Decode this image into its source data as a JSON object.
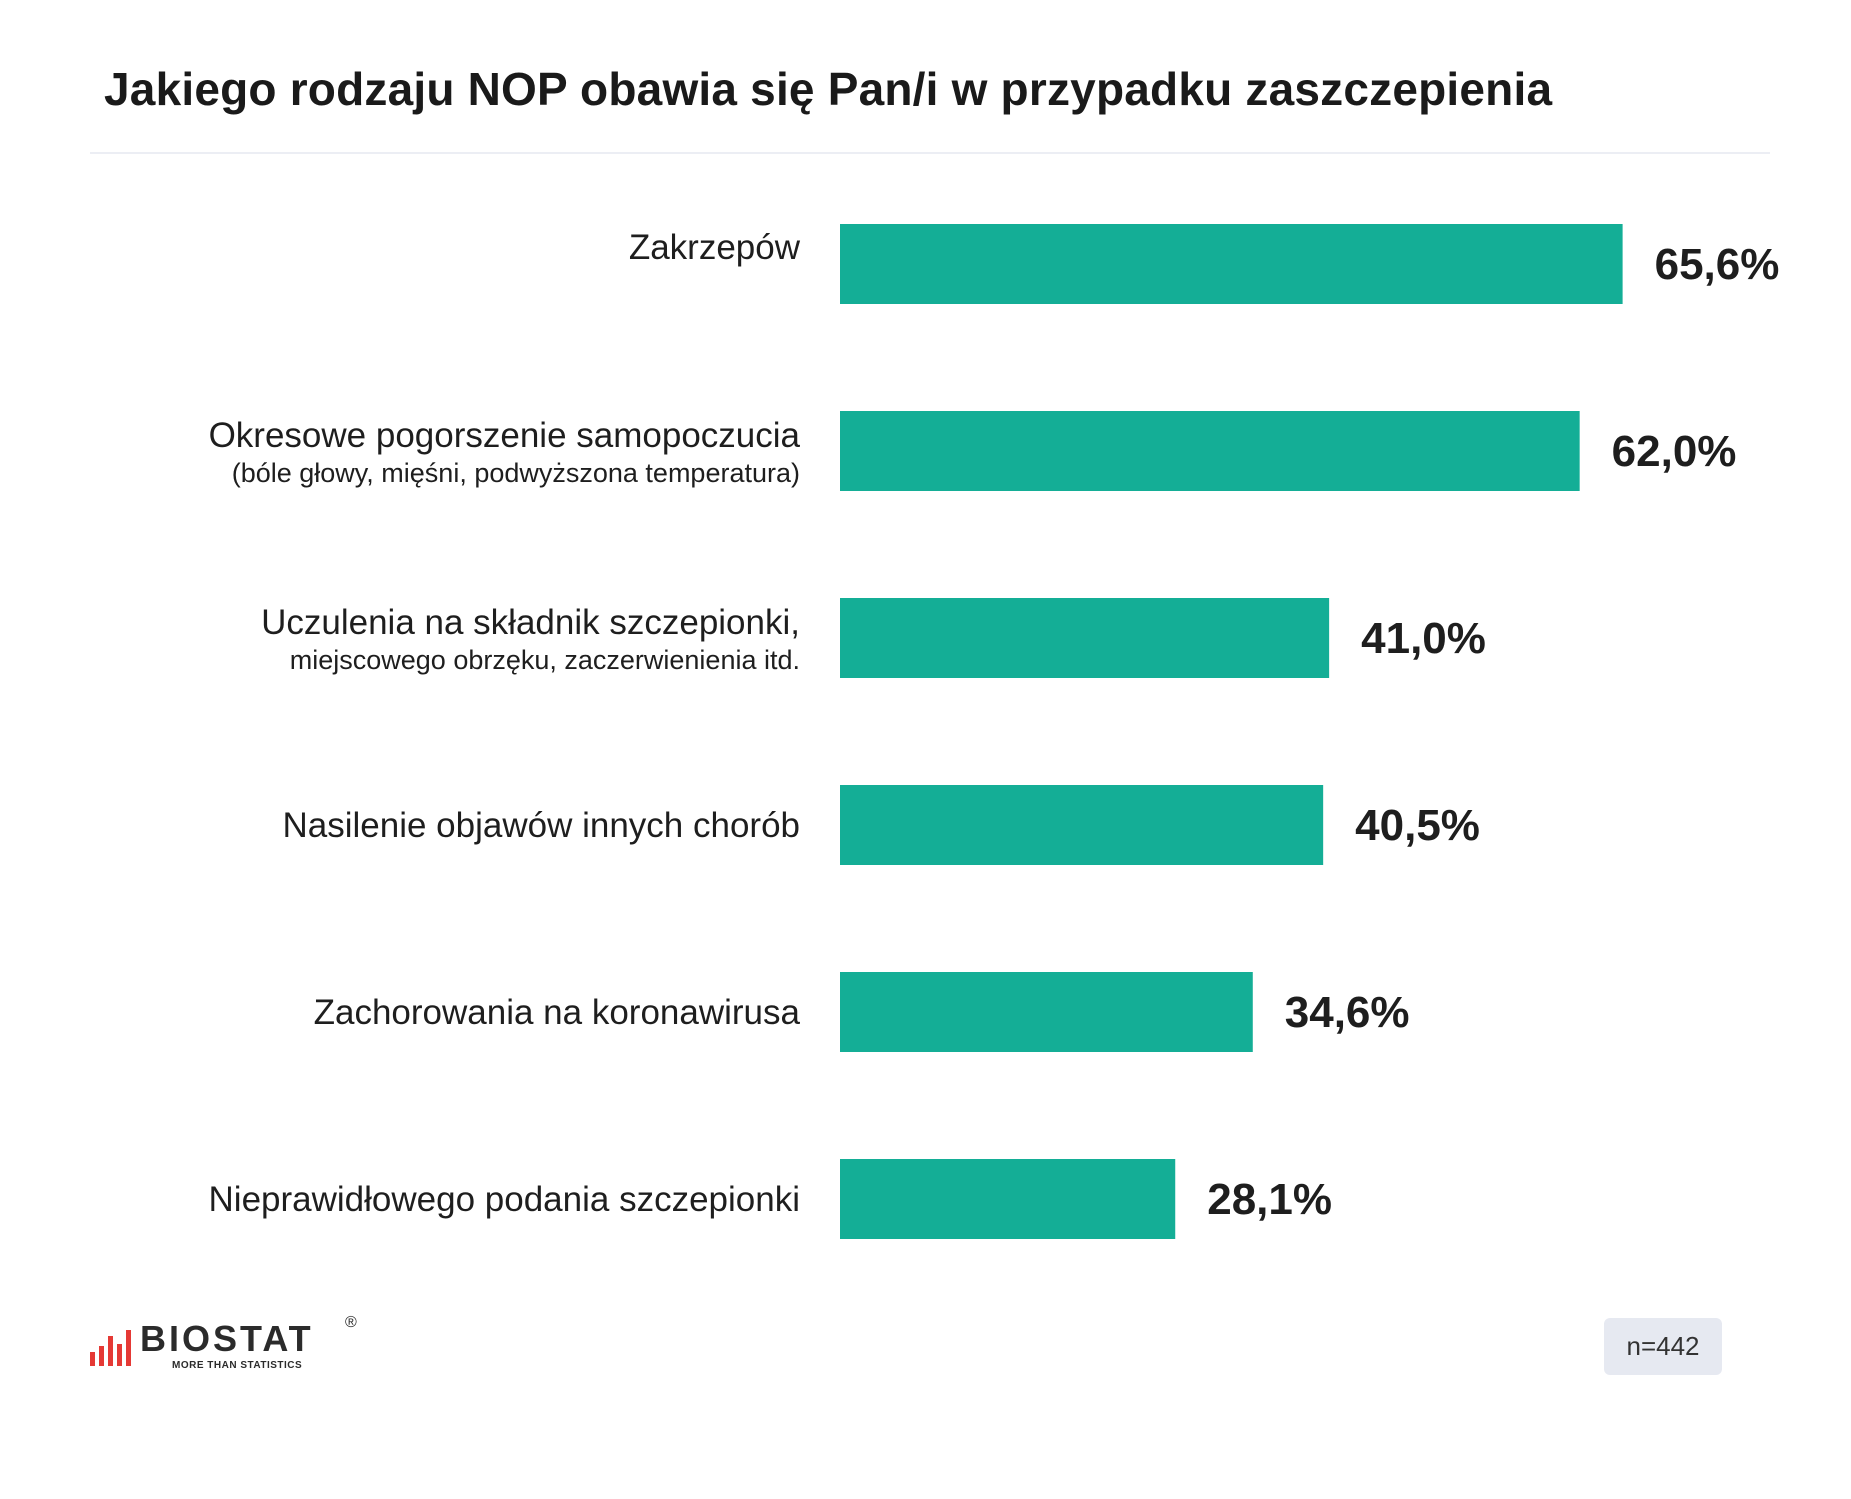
{
  "chart_data": {
    "type": "bar",
    "orientation": "horizontal",
    "title": "Jakiego rodzaju NOP obawia się Pan/i w przypadku zaszczepienia",
    "categories": [
      {
        "label": "Zakrzepów",
        "sublabel": ""
      },
      {
        "label": "Okresowe pogorszenie samopoczucia",
        "sublabel": "(bóle głowy, mięśni, podwyższona temperatura)"
      },
      {
        "label": "Uczulenia na składnik szczepionki,",
        "sublabel": "miejscowego obrzęku, zaczerwienienia itd."
      },
      {
        "label": "Nasilenie objawów innych chorób",
        "sublabel": ""
      },
      {
        "label": "Zachorowania na koronawirusa",
        "sublabel": ""
      },
      {
        "label": "Nieprawidłowego podania szczepionki",
        "sublabel": ""
      }
    ],
    "values": [
      65.6,
      62.0,
      41.0,
      40.5,
      34.6,
      28.1
    ],
    "value_labels": [
      "65,6%",
      "62,0%",
      "41,0%",
      "40,5%",
      "34,6%",
      "28,1%"
    ],
    "xlim": [
      0,
      100
    ],
    "bar_color": "#14ae96",
    "grid": false,
    "legend": "none"
  },
  "footer": {
    "logo_text": "BIOSTAT",
    "logo_reg": "®",
    "logo_tagline": "MORE THAN STATISTICS",
    "sample": "n=442"
  },
  "colors": {
    "accent": "#14ae96",
    "logo_red": "#e53935",
    "badge_bg": "#e6e9f1"
  }
}
